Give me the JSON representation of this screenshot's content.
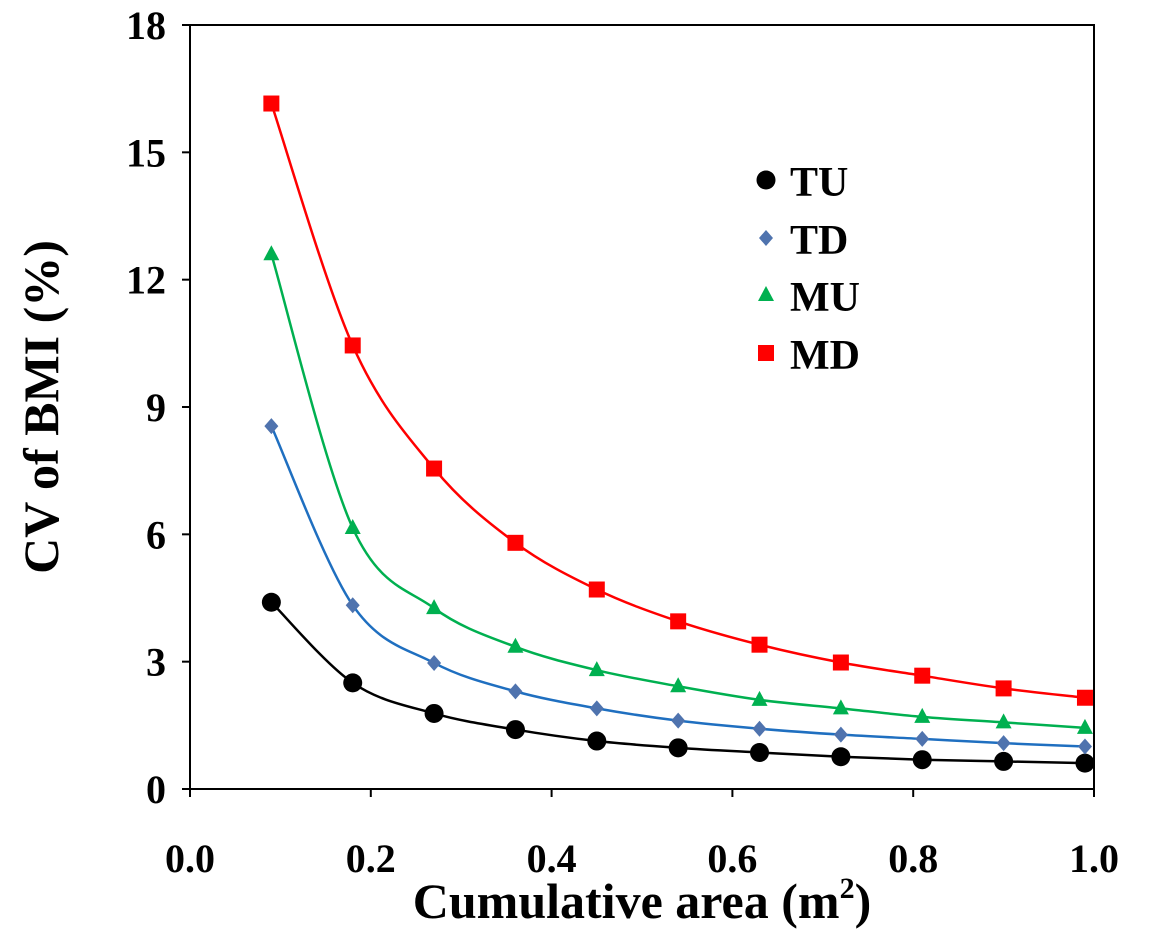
{
  "chart_data": {
    "type": "scatter",
    "title": "",
    "xlabel": "Cumulative area (m",
    "xlabel_sup": "2",
    "xlabel_end": ")",
    "ylabel": "CV of BMI (%)",
    "xlim": [
      0.0,
      1.0
    ],
    "ylim": [
      0,
      18
    ],
    "xticks": [
      "0.0",
      "0.2",
      "0.4",
      "0.6",
      "0.8",
      "1.0"
    ],
    "yticks": [
      "0",
      "3",
      "6",
      "9",
      "12",
      "15",
      "18"
    ],
    "grid": false,
    "legend_position": "top-right",
    "x": [
      0.09,
      0.18,
      0.27,
      0.36,
      0.45,
      0.54,
      0.63,
      0.72,
      0.81,
      0.9,
      0.99
    ],
    "series": [
      {
        "name": "TU",
        "marker": "circle",
        "color": "#000000",
        "line_color": "#000000",
        "values": [
          4.4,
          2.5,
          1.78,
          1.4,
          1.13,
          0.97,
          0.86,
          0.76,
          0.69,
          0.65,
          0.61
        ]
      },
      {
        "name": "TD",
        "marker": "diamond",
        "color": "#4F73AE",
        "line_color": "#1F6FC0",
        "values": [
          8.55,
          4.33,
          2.97,
          2.3,
          1.9,
          1.61,
          1.42,
          1.28,
          1.18,
          1.08,
          1.0
        ]
      },
      {
        "name": "MU",
        "marker": "triangle",
        "color": "#00B050",
        "line_color": "#00B050",
        "values": [
          12.6,
          6.15,
          4.26,
          3.35,
          2.8,
          2.42,
          2.1,
          1.9,
          1.7,
          1.57,
          1.44
        ]
      },
      {
        "name": "MD",
        "marker": "square",
        "color": "#FF0000",
        "line_color": "#FF0000",
        "values": [
          16.15,
          10.45,
          7.55,
          5.8,
          4.7,
          3.95,
          3.4,
          2.98,
          2.67,
          2.37,
          2.15
        ]
      }
    ]
  }
}
